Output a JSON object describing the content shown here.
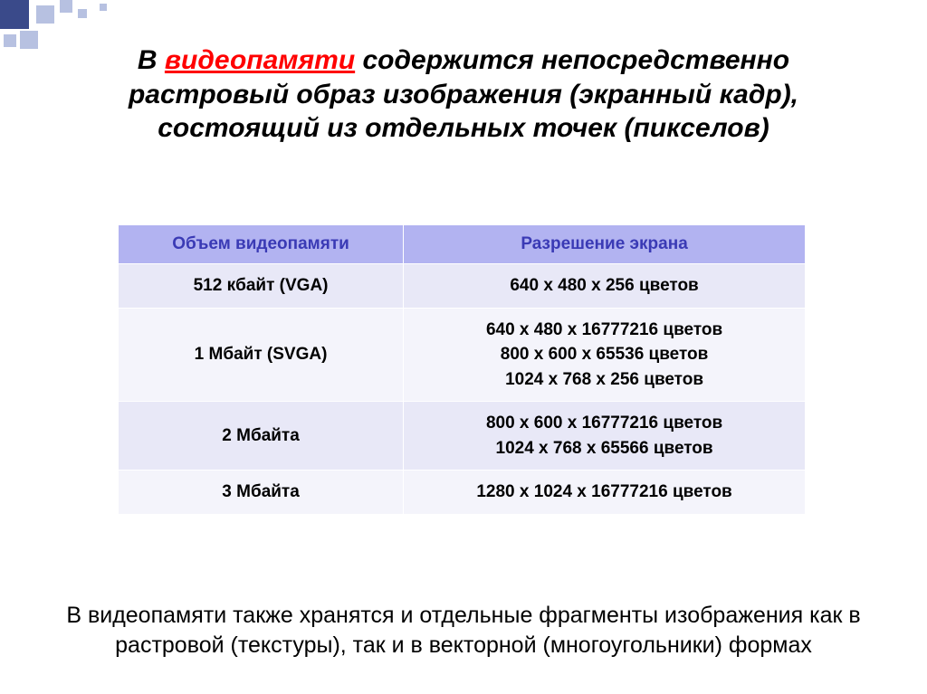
{
  "title": {
    "pre": "В ",
    "highlight": "видеопамяти",
    "post": " содержится непосредственно растровый образ изображения (экранный кадр), состоящий из отдельных точек (пикселов)"
  },
  "table": {
    "headers": [
      "Объем видеопамяти",
      "Разрешение экрана"
    ],
    "rows": [
      {
        "memory": "512 кбайт (VGA)",
        "res": "640 х 480 х 256 цветов"
      },
      {
        "memory": "1 Мбайт (SVGA)",
        "res": "640 х 480 х 16777216 цветов\n800 х 600 х 65536 цветов\n1024 х 768 х 256 цветов"
      },
      {
        "memory": "2 Мбайта",
        "res": "800 х 600 х 16777216 цветов\n1024 х 768 х 65566 цветов"
      },
      {
        "memory": "3 Мбайта",
        "res": "1280 х 1024 х 16777216 цветов"
      }
    ]
  },
  "footer": "В видеопамяти также хранятся и отдельные фрагменты изображения как в растровой (текстуры), так и в векторной (многоугольники) формах",
  "colors": {
    "highlight": "#ff0000",
    "header_bg": "#b2b3f1",
    "header_text": "#3a3ab5",
    "row_odd": "#e8e8f7",
    "row_even": "#f4f4fb",
    "deco": "#b7c1e1"
  }
}
